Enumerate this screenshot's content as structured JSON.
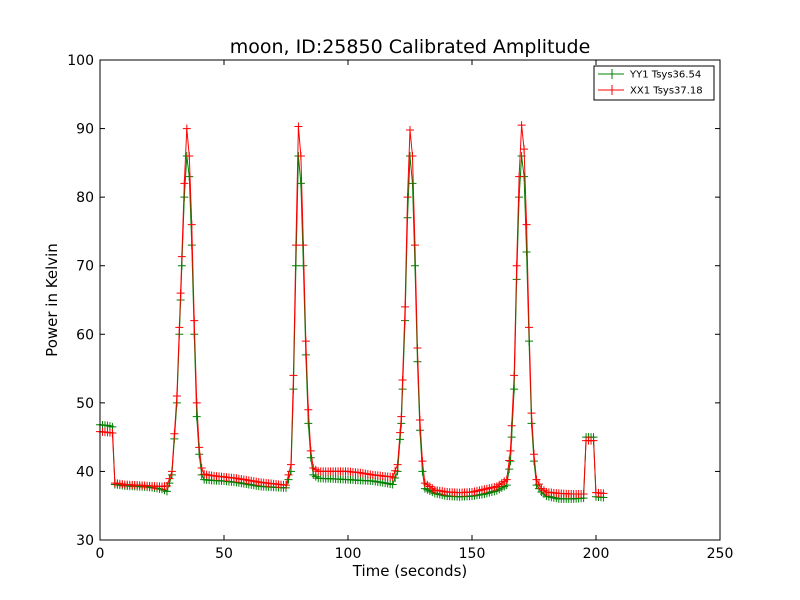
{
  "chart_data": {
    "type": "line",
    "title": "moon, ID:25850 Calibrated Amplitude",
    "xlabel": "Time (seconds)",
    "ylabel": "Power in Kelvin",
    "xlim": [
      0,
      250
    ],
    "ylim": [
      30,
      100
    ],
    "xticks": [
      "0",
      "50",
      "100",
      "150",
      "200",
      "250"
    ],
    "yticks": [
      "30",
      "40",
      "50",
      "60",
      "70",
      "80",
      "90",
      "100"
    ],
    "grid": false,
    "legend_position": "top-right",
    "marker": "plus",
    "series": [
      {
        "name": "YY1 Tsys36.54",
        "color": "#008000",
        "points": [
          [
            0,
            46.8
          ],
          [
            3,
            46.7
          ],
          [
            5,
            46.5
          ],
          [
            6,
            38.1
          ],
          [
            10,
            37.9
          ],
          [
            15,
            37.8
          ],
          [
            20,
            37.7
          ],
          [
            25,
            37.4
          ],
          [
            27,
            37.1
          ],
          [
            29,
            39.5
          ],
          [
            31,
            50
          ],
          [
            32.5,
            65
          ],
          [
            34,
            80
          ],
          [
            35,
            86
          ],
          [
            36,
            83
          ],
          [
            37,
            73
          ],
          [
            38,
            60
          ],
          [
            39,
            48
          ],
          [
            40,
            42.5
          ],
          [
            41,
            39.5
          ],
          [
            42,
            38.8
          ],
          [
            45,
            38.7
          ],
          [
            50,
            38.6
          ],
          [
            55,
            38.4
          ],
          [
            60,
            38.1
          ],
          [
            65,
            37.8
          ],
          [
            70,
            37.7
          ],
          [
            75,
            37.6
          ],
          [
            77,
            40
          ],
          [
            78,
            52
          ],
          [
            79,
            70
          ],
          [
            80,
            86
          ],
          [
            81,
            82
          ],
          [
            82,
            70
          ],
          [
            83,
            57
          ],
          [
            84,
            47
          ],
          [
            85,
            42
          ],
          [
            86,
            39.5
          ],
          [
            88,
            39.0
          ],
          [
            95,
            38.9
          ],
          [
            100,
            38.8
          ],
          [
            105,
            38.7
          ],
          [
            110,
            38.6
          ],
          [
            115,
            38.3
          ],
          [
            118,
            38.1
          ],
          [
            120,
            40
          ],
          [
            121.5,
            47
          ],
          [
            123,
            62
          ],
          [
            124,
            77
          ],
          [
            125,
            86
          ],
          [
            126,
            82
          ],
          [
            127,
            70
          ],
          [
            128,
            56
          ],
          [
            129,
            46
          ],
          [
            130,
            40
          ],
          [
            131,
            37.5
          ],
          [
            135,
            36.8
          ],
          [
            140,
            36.4
          ],
          [
            145,
            36.3
          ],
          [
            150,
            36.4
          ],
          [
            155,
            36.7
          ],
          [
            160,
            37.2
          ],
          [
            164,
            38
          ],
          [
            165.5,
            41.5
          ],
          [
            167,
            52
          ],
          [
            168,
            68
          ],
          [
            169,
            80
          ],
          [
            170,
            86
          ],
          [
            171,
            83
          ],
          [
            172,
            72
          ],
          [
            173,
            59
          ],
          [
            174,
            47
          ],
          [
            175,
            41.5
          ],
          [
            176,
            38
          ],
          [
            178,
            37
          ],
          [
            180,
            36.4
          ],
          [
            185,
            36.0
          ],
          [
            190,
            36.0
          ],
          [
            195,
            36.1
          ],
          [
            196,
            45.0
          ],
          [
            199,
            45.0
          ],
          [
            200,
            36.3
          ],
          [
            203,
            36.2
          ]
        ]
      },
      {
        "name": "XX1 Tsys37.18",
        "color": "#ff0000",
        "points": [
          [
            0,
            45.8
          ],
          [
            3,
            45.7
          ],
          [
            5,
            45.6
          ],
          [
            6,
            38.3
          ],
          [
            10,
            38.1
          ],
          [
            15,
            38.0
          ],
          [
            20,
            37.9
          ],
          [
            25,
            37.8
          ],
          [
            27,
            37.9
          ],
          [
            29,
            40
          ],
          [
            31,
            51
          ],
          [
            32.5,
            66
          ],
          [
            34,
            82
          ],
          [
            35,
            90
          ],
          [
            36,
            86
          ],
          [
            37,
            76
          ],
          [
            38,
            62
          ],
          [
            39,
            50
          ],
          [
            40,
            43.5
          ],
          [
            41,
            40.5
          ],
          [
            42,
            39.6
          ],
          [
            45,
            39.4
          ],
          [
            50,
            39.2
          ],
          [
            55,
            39.0
          ],
          [
            60,
            38.7
          ],
          [
            65,
            38.4
          ],
          [
            70,
            38.2
          ],
          [
            75,
            38.0
          ],
          [
            77,
            41
          ],
          [
            78,
            54
          ],
          [
            79,
            73
          ],
          [
            80,
            90.3
          ],
          [
            81,
            86
          ],
          [
            82,
            73
          ],
          [
            83,
            59
          ],
          [
            84,
            49
          ],
          [
            85,
            43
          ],
          [
            86,
            40.5
          ],
          [
            88,
            40.0
          ],
          [
            95,
            40.0
          ],
          [
            100,
            40.0
          ],
          [
            105,
            39.8
          ],
          [
            110,
            39.5
          ],
          [
            115,
            39.3
          ],
          [
            118,
            39.2
          ],
          [
            120,
            41
          ],
          [
            121.5,
            48
          ],
          [
            123,
            64
          ],
          [
            124,
            80
          ],
          [
            125,
            89.8
          ],
          [
            126,
            86
          ],
          [
            127,
            73
          ],
          [
            128,
            58
          ],
          [
            129,
            47.5
          ],
          [
            130,
            41.5
          ],
          [
            131,
            38.3
          ],
          [
            135,
            37.3
          ],
          [
            140,
            37.0
          ],
          [
            145,
            36.9
          ],
          [
            150,
            37.0
          ],
          [
            155,
            37.4
          ],
          [
            160,
            37.8
          ],
          [
            164,
            38.8
          ],
          [
            165.5,
            43
          ],
          [
            167,
            54
          ],
          [
            168,
            70
          ],
          [
            169,
            83
          ],
          [
            170,
            90.5
          ],
          [
            171,
            87
          ],
          [
            172,
            76
          ],
          [
            173,
            61
          ],
          [
            174,
            48.5
          ],
          [
            175,
            42.5
          ],
          [
            176,
            38.8
          ],
          [
            178,
            37.5
          ],
          [
            180,
            37.0
          ],
          [
            185,
            36.8
          ],
          [
            190,
            36.7
          ],
          [
            195,
            36.7
          ],
          [
            196,
            44.5
          ],
          [
            199,
            44.5
          ],
          [
            200,
            36.9
          ],
          [
            203,
            36.8
          ]
        ]
      }
    ]
  }
}
